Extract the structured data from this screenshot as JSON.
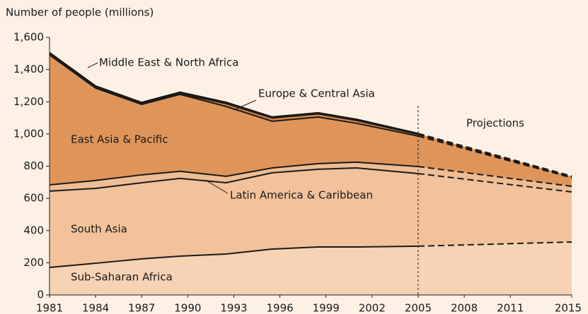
{
  "chart_data": {
    "type": "stacked_area",
    "y_axis_label": "Number of people (millions)",
    "x": [
      1981,
      1984,
      1987,
      1989.5,
      1992.5,
      1995.5,
      1998.5,
      2001,
      2005,
      2015
    ],
    "projection_start": 2005,
    "projection_label": "Projections",
    "series": [
      {
        "name": "Sub-Saharan Africa",
        "color": "#f6d3b4",
        "values": [
          171,
          197,
          224,
          241,
          254,
          285,
          298,
          298,
          303,
          329
        ]
      },
      {
        "name": "South Asia",
        "color": "#f2c29c",
        "values": [
          474,
          465,
          473,
          483,
          443,
          474,
          483,
          491,
          451,
          311
        ]
      },
      {
        "name": "Latin America & Caribbean",
        "color": "#efbd94",
        "values": [
          39,
          49,
          49,
          44,
          40,
          30,
          35,
          36,
          44,
          35
        ]
      },
      {
        "name": "East Asia & Pacific",
        "color": "#df955a",
        "values": [
          807,
          574,
          438,
          478,
          434,
          290,
          289,
          241,
          189,
          53
        ]
      },
      {
        "name": "Europe & Central Asia",
        "color": "#d98646",
        "values": [
          3,
          3,
          3,
          5,
          18,
          20,
          20,
          18,
          10,
          5
        ]
      },
      {
        "name": "Middle East & North Africa",
        "color": "#c97a3e",
        "values": [
          9,
          8,
          7,
          7,
          6,
          5,
          5,
          5,
          4,
          3
        ]
      }
    ],
    "xlim": [
      1981,
      2015
    ],
    "xticks": [
      1981,
      1984,
      1987,
      1990,
      1993,
      1996,
      1999,
      2002,
      2005,
      2008,
      2011,
      2015
    ],
    "ylim": [
      0,
      1600
    ],
    "yticks": [
      0,
      200,
      400,
      600,
      800,
      {
        "value": 1000,
        "label": "1,000"
      },
      {
        "value": 1200,
        "label": "1,200"
      },
      {
        "value": 1400,
        "label": "1,400"
      },
      {
        "value": 1600,
        "label": "1,600"
      }
    ]
  }
}
